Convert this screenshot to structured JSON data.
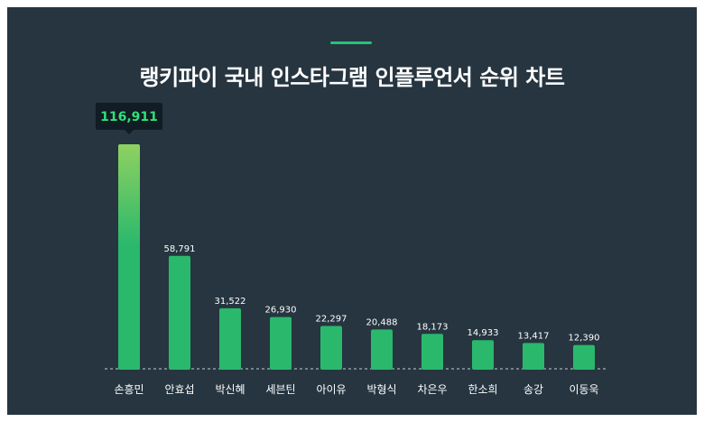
{
  "title": "랭키파이 국내 인스타그램 인플루언서 순위 차트",
  "colors": {
    "background": "#263540",
    "accent": "#27c277",
    "bar": "#2ab86c",
    "bar_top_highlight": "#8fd160",
    "tooltip_bg": "#111c24",
    "tooltip_text": "#2ee27a"
  },
  "chart_data": {
    "type": "bar",
    "title": "랭키파이 국내 인스타그램 인플루언서 순위 차트",
    "categories": [
      "손흥민",
      "안효섭",
      "박신혜",
      "세븐틴",
      "아이유",
      "박형식",
      "차은우",
      "한소희",
      "송강",
      "이동욱"
    ],
    "values": [
      116911,
      58791,
      31522,
      26930,
      22297,
      20488,
      18173,
      14933,
      13417,
      12390
    ],
    "value_labels": [
      "116,911",
      "58,791",
      "31,522",
      "26,930",
      "22,297",
      "20,488",
      "18,173",
      "14,933",
      "13,417",
      "12,390"
    ],
    "ylim": [
      0,
      116911
    ],
    "grid": false,
    "highlighted_index": 0
  }
}
